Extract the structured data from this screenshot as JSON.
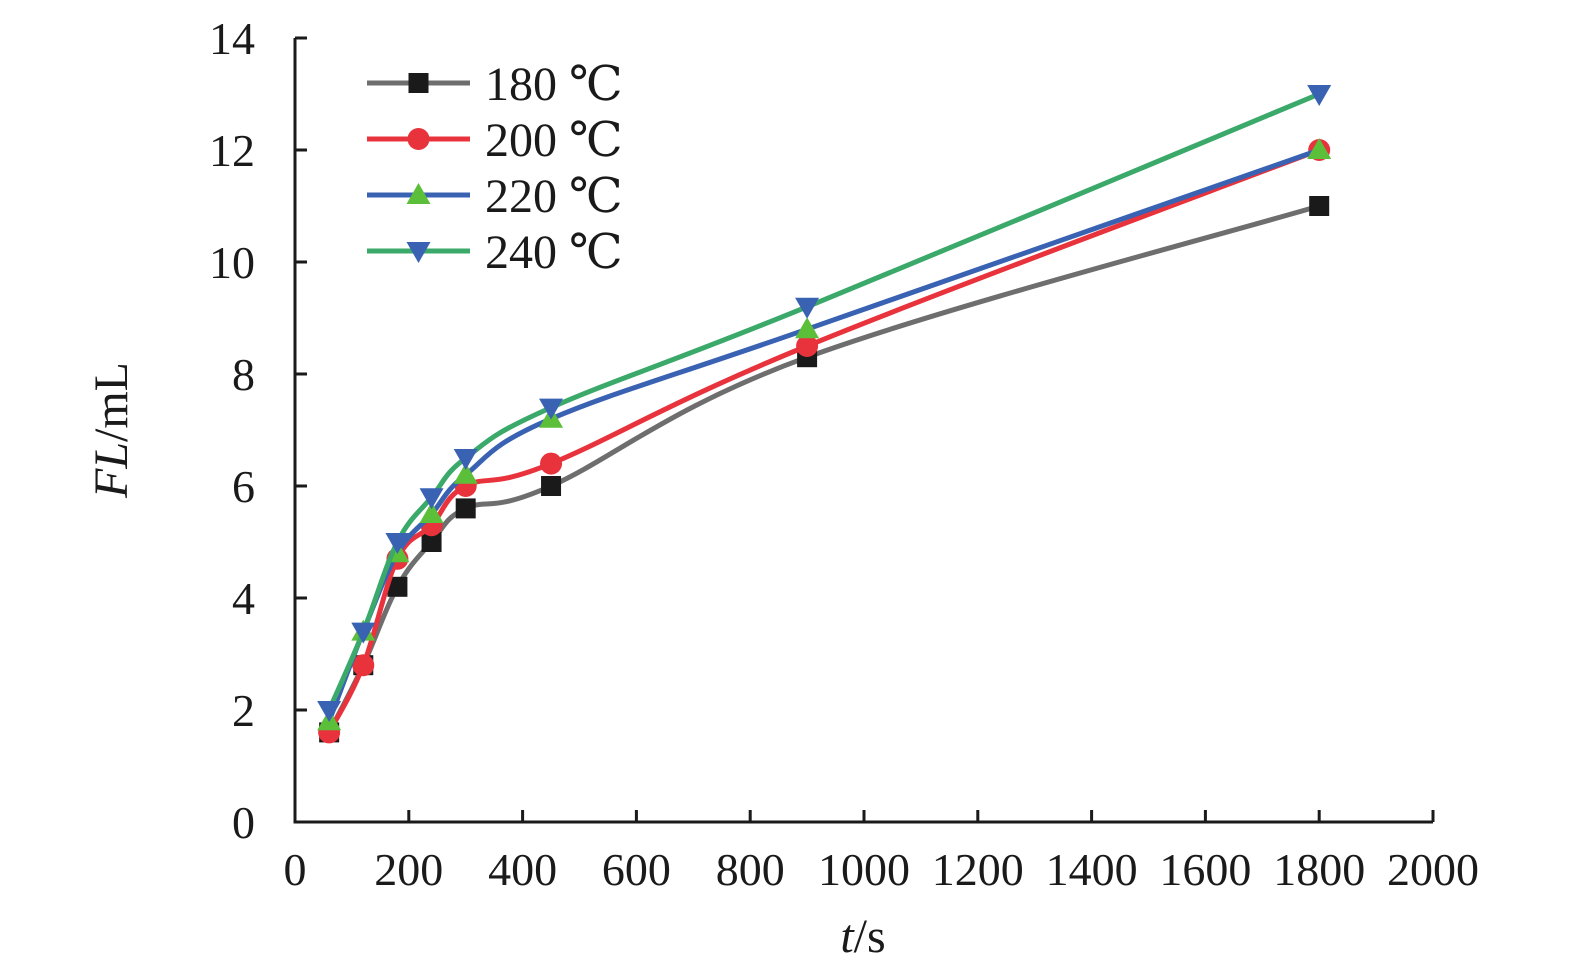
{
  "chart_data": {
    "type": "line",
    "xlabel_italic": "t",
    "xlabel_rest": "/s",
    "ylabel_italic": "FL",
    "ylabel_rest": "/mL",
    "xlim": [
      0,
      2000
    ],
    "ylim": [
      0,
      14
    ],
    "xticks": [
      0,
      200,
      400,
      600,
      800,
      1000,
      1200,
      1400,
      1600,
      1800,
      2000
    ],
    "yticks": [
      0,
      2,
      4,
      6,
      8,
      10,
      12,
      14
    ],
    "x": [
      60,
      120,
      180,
      240,
      300,
      450,
      900,
      1800
    ],
    "grid": false,
    "legend_position": "top-left",
    "series": [
      {
        "name": "180 ℃",
        "color": "#6e6e6e",
        "marker": "square",
        "marker_color": "#1a1a1a",
        "values": [
          1.6,
          2.8,
          4.2,
          5.0,
          5.6,
          6.0,
          8.3,
          11.0
        ]
      },
      {
        "name": "200 ℃",
        "color": "#e8333d",
        "marker": "circle",
        "marker_color": "#e8333d",
        "values": [
          1.6,
          2.8,
          4.7,
          5.3,
          6.0,
          6.4,
          8.5,
          12.0
        ]
      },
      {
        "name": "220 ℃",
        "color": "#3a62b3",
        "marker": "triangle-up",
        "marker_color": "#5cbf3a",
        "values": [
          1.8,
          3.4,
          4.8,
          5.5,
          6.2,
          7.2,
          8.8,
          12.0
        ]
      },
      {
        "name": "240 ℃",
        "color": "#3aa96a",
        "marker": "triangle-down",
        "marker_color": "#3a62b3",
        "values": [
          2.0,
          3.4,
          5.0,
          5.8,
          6.5,
          7.4,
          9.2,
          13.0
        ]
      }
    ]
  }
}
